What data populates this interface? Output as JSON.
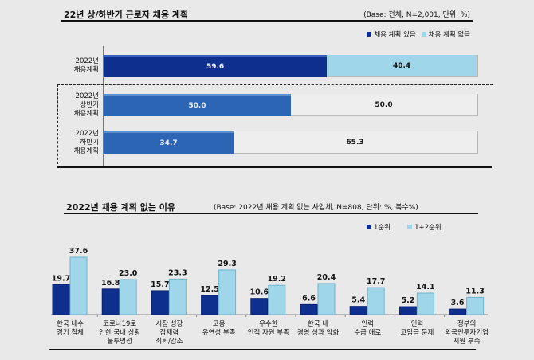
{
  "colors": {
    "dark_blue": "#0f2f8f",
    "mid_blue": "#2b65b3",
    "light_blue": "#9fd6ea",
    "light_gray": "#eeeeee"
  },
  "chart_data": [
    {
      "type": "bar",
      "orientation": "horizontal-stacked",
      "title": "22년 상/하반기 근로자 채용 계획",
      "base_note": "(Base: 전체, N=2,001, 단위: %)",
      "legend": [
        "채용 계획 있음",
        "채용 계획 없음"
      ],
      "legend_position": "top-right",
      "categories": [
        "2022년\n채용계획",
        "2022년\n상반기\n채용계획",
        "2022년\n하반기\n채용계획"
      ],
      "series": [
        {
          "name": "채용 계획 있음",
          "values": [
            59.6,
            50.0,
            34.7
          ]
        },
        {
          "name": "채용 계획 없음",
          "values": [
            40.4,
            50.0,
            65.3
          ]
        }
      ],
      "xlim": [
        0,
        100
      ]
    },
    {
      "type": "bar",
      "orientation": "vertical-grouped",
      "title": "2022년 채용 계획 없는 이유",
      "base_note": "(Base: 2022년 채용 계획 없는 사업체, N=808, 단위: %, 복수%)",
      "legend": [
        "1순위",
        "1+2순위"
      ],
      "legend_position": "top-right",
      "categories": [
        "한국 내수\n경기 침체",
        "코로나19로\n인한 국내 상황\n불투명성",
        "시장 성장\n잠재력\n쇠퇴/감소",
        "고용\n유연성 부족",
        "우수한\n인적 자원 부족",
        "한국 내\n경영 성과 악화",
        "인력\n수급 애로",
        "인력\n고임금 문제",
        "정부의\n외국인투자기업\n지원 부족"
      ],
      "series": [
        {
          "name": "1순위",
          "values": [
            19.7,
            16.8,
            15.7,
            12.5,
            10.6,
            6.6,
            5.4,
            5.2,
            3.6
          ]
        },
        {
          "name": "1+2순위",
          "values": [
            37.6,
            23.0,
            23.3,
            29.3,
            19.2,
            20.4,
            17.7,
            14.1,
            11.3
          ]
        }
      ],
      "ylim": [
        0,
        40
      ]
    }
  ]
}
